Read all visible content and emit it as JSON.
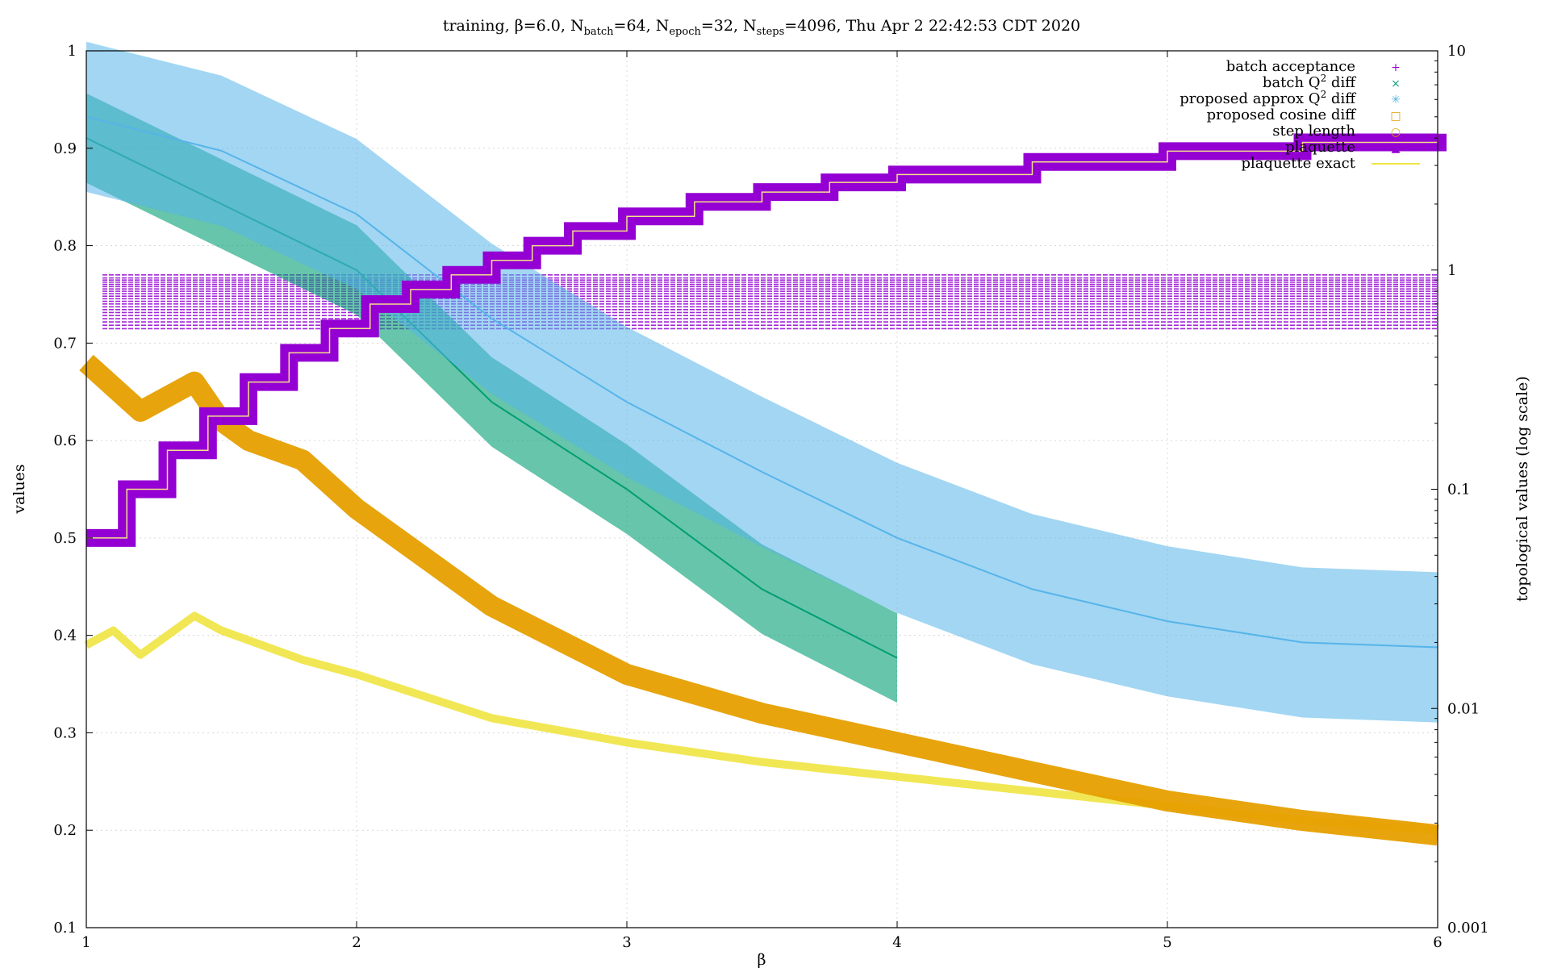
{
  "chart_data": {
    "type": "scatter",
    "title": "training, β=6.0, N",
    "title_parts": [
      {
        "text": "training, β=6.0, N"
      },
      {
        "text": "batch",
        "sub": true
      },
      {
        "text": "=64, N"
      },
      {
        "text": "epoch",
        "sub": true
      },
      {
        "text": "=32, N"
      },
      {
        "text": "steps",
        "sub": true
      },
      {
        "text": "=4096, Thu Apr  2 22:42:53 CDT 2020"
      }
    ],
    "xlabel": "β",
    "ylabel": "values",
    "y2label": "topological values (log scale)",
    "xlim": [
      1,
      6
    ],
    "ylim": [
      0.1,
      1
    ],
    "y2lim": [
      0.001,
      10
    ],
    "y2scale": "log",
    "xticks": [
      "1",
      "2",
      "3",
      "4",
      "5",
      "6"
    ],
    "yticks": [
      "0.1",
      "0.2",
      "0.3",
      "0.4",
      "0.5",
      "0.6",
      "0.7",
      "0.8",
      "0.9",
      "1"
    ],
    "y2ticks": [
      "0.001",
      "0.01",
      "0.1",
      "1",
      "10"
    ],
    "grid": true,
    "legend_position": "top-right",
    "legend": [
      {
        "label": "batch acceptance",
        "marker": "+",
        "color": "#9400d3"
      },
      {
        "label": "batch Q",
        "sup": "2",
        "suffix": " diff",
        "marker": "×",
        "color": "#009e73"
      },
      {
        "label": "proposed approx Q",
        "sup": "2",
        "suffix": " diff",
        "marker": "✳",
        "color": "#56b4e9"
      },
      {
        "label": "proposed cosine diff",
        "marker": "□",
        "color": "#e69f00"
      },
      {
        "label": "step length",
        "marker": "○",
        "color": "#e69f00"
      },
      {
        "label": "plaquette",
        "marker": "▲",
        "color": "#9400d3"
      },
      {
        "label": "plaquette exact",
        "marker": "line",
        "color": "#f0e442"
      }
    ],
    "series": [
      {
        "name": "batch acceptance",
        "color": "#9400d3",
        "axis": "y2",
        "x": [
          1.0,
          1.5,
          2.0,
          2.5,
          3.0,
          3.5,
          4.0,
          4.5,
          5.0,
          5.5,
          6.0
        ],
        "values": [
          0.85,
          0.85,
          0.8,
          0.8,
          0.78,
          0.75,
          0.72,
          0.7,
          0.68,
          0.68,
          0.68
        ],
        "note_levels": [
          0.95,
          0.92,
          0.9,
          0.88,
          0.86,
          0.84,
          0.82,
          0.8,
          0.78,
          0.76,
          0.74,
          0.72,
          0.7,
          0.68,
          0.66,
          0.64,
          0.62,
          0.6,
          0.58,
          0.56,
          0.54
        ]
      },
      {
        "name": "batch Q² diff",
        "color": "#009e73",
        "axis": "y2",
        "x": [
          1.0,
          1.5,
          2.0,
          2.5,
          3.0,
          3.5,
          4.0
        ],
        "values": [
          4.0,
          2.0,
          1.0,
          0.25,
          0.1,
          0.035,
          0.017
        ]
      },
      {
        "name": "proposed approx Q² diff",
        "color": "#56b4e9",
        "axis": "y2",
        "x": [
          1.0,
          1.5,
          2.0,
          2.5,
          3.0,
          3.5,
          4.0,
          4.5,
          5.0,
          5.5,
          6.0
        ],
        "values": [
          5.0,
          3.5,
          1.8,
          0.6,
          0.25,
          0.12,
          0.06,
          0.035,
          0.025,
          0.02,
          0.019
        ]
      },
      {
        "name": "proposed cosine diff",
        "color": "#e69f00",
        "axis": "y",
        "x": [
          1.0,
          1.2,
          1.4,
          1.5,
          1.6,
          1.8,
          2.0,
          2.5,
          3.0,
          3.5,
          4.0,
          4.5,
          5.0,
          5.5,
          6.0
        ],
        "values": [
          0.68,
          0.63,
          0.66,
          0.62,
          0.6,
          0.58,
          0.53,
          0.43,
          0.36,
          0.32,
          0.29,
          0.26,
          0.23,
          0.21,
          0.195
        ]
      },
      {
        "name": "plaquette",
        "color": "#9400d3",
        "axis": "y",
        "x": [
          1.0,
          1.15,
          1.3,
          1.45,
          1.6,
          1.75,
          1.9,
          2.05,
          2.2,
          2.35,
          2.5,
          2.65,
          2.8,
          3.0,
          3.25,
          3.5,
          3.75,
          4.0,
          4.5,
          5.0,
          5.5,
          6.0
        ],
        "values": [
          0.5,
          0.55,
          0.59,
          0.625,
          0.66,
          0.69,
          0.715,
          0.74,
          0.755,
          0.77,
          0.785,
          0.8,
          0.815,
          0.83,
          0.845,
          0.855,
          0.865,
          0.873,
          0.886,
          0.897,
          0.906,
          0.915
        ]
      },
      {
        "name": "plaquette exact",
        "color": "#f0e442",
        "axis": "y",
        "x": [
          1.0,
          1.1,
          1.2,
          1.3,
          1.4,
          1.5,
          1.6,
          1.8,
          2.0,
          2.5,
          3.0,
          3.5,
          4.0,
          4.5,
          5.0,
          5.5,
          6.0
        ],
        "values": [
          0.39,
          0.405,
          0.38,
          0.4,
          0.42,
          0.405,
          0.395,
          0.375,
          0.36,
          0.315,
          0.29,
          0.27,
          0.255,
          0.24,
          0.225,
          0.21,
          0.2
        ]
      }
    ]
  }
}
